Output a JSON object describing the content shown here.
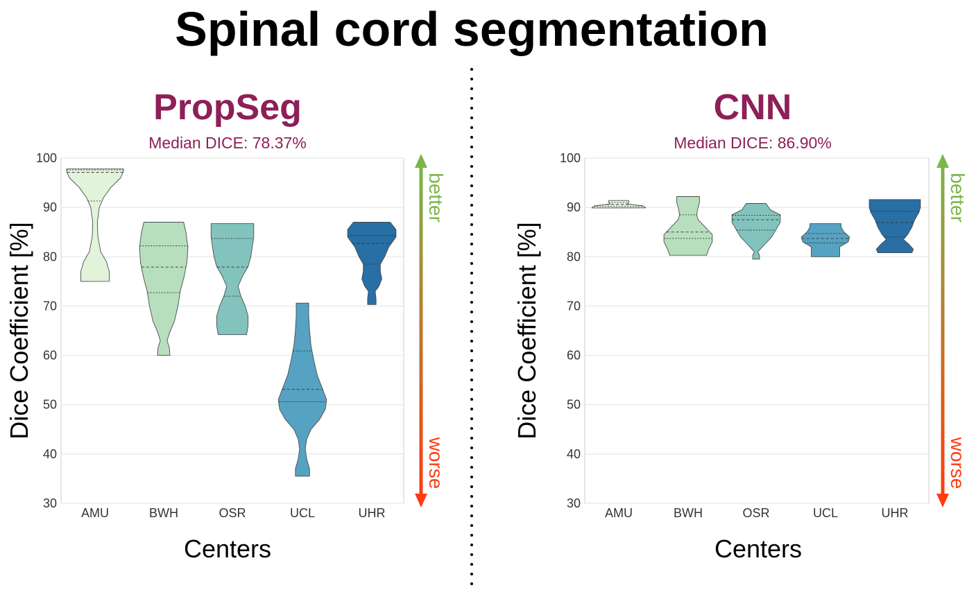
{
  "title": "Spinal cord segmentation",
  "colors": {
    "title_accent": "#8e1f58",
    "better": "#7ab648",
    "worse": "#ff3b10",
    "grid": "#e2e2e2",
    "outline": "#4a4a4a",
    "divider": "#000000"
  },
  "arrow": {
    "better": "better",
    "worse": "worse"
  },
  "chart_data": [
    {
      "type": "violin",
      "title": "PropSeg",
      "subtitle": "Median DICE: 78.37%",
      "xlabel": "Centers",
      "ylabel": "Dice Coefficient [%]",
      "ylim": [
        30,
        100
      ],
      "yticks": [
        30,
        40,
        50,
        60,
        70,
        80,
        90,
        100
      ],
      "categories": [
        "AMU",
        "BWH",
        "OSR",
        "UCL",
        "UHR"
      ],
      "colors": [
        "#e2f3dc",
        "#b7dfbd",
        "#83c3bd",
        "#56a2c2",
        "#276fa4"
      ],
      "violins": [
        {
          "center": "AMU",
          "min": 75.0,
          "max": 97.8,
          "q1": 91.3,
          "median": 97.1,
          "q3": 97.6,
          "profile": [
            [
              75.0,
              0.5
            ],
            [
              77,
              0.5
            ],
            [
              79,
              0.4
            ],
            [
              81,
              0.2
            ],
            [
              84,
              0.1
            ],
            [
              87,
              0.08
            ],
            [
              90,
              0.15
            ],
            [
              92,
              0.3
            ],
            [
              94,
              0.55
            ],
            [
              96,
              0.9
            ],
            [
              97.3,
              1.0
            ],
            [
              97.8,
              1.0
            ]
          ]
        },
        {
          "center": "BWH",
          "min": 60.0,
          "max": 87.0,
          "q1": 72.7,
          "median": 77.9,
          "q3": 82.2,
          "profile": [
            [
              60.0,
              0.22
            ],
            [
              61.5,
              0.2
            ],
            [
              63,
              0.12
            ],
            [
              64.5,
              0.2
            ],
            [
              67,
              0.38
            ],
            [
              70,
              0.5
            ],
            [
              73,
              0.58
            ],
            [
              76,
              0.72
            ],
            [
              79,
              0.82
            ],
            [
              82,
              0.85
            ],
            [
              85,
              0.78
            ],
            [
              87,
              0.7
            ]
          ]
        },
        {
          "center": "OSR",
          "min": 64.2,
          "max": 86.7,
          "q1": 72.0,
          "median": 77.9,
          "q3": 83.7,
          "profile": [
            [
              64.2,
              0.5
            ],
            [
              66,
              0.55
            ],
            [
              68,
              0.55
            ],
            [
              70,
              0.45
            ],
            [
              72,
              0.3
            ],
            [
              74,
              0.2
            ],
            [
              76,
              0.35
            ],
            [
              78,
              0.55
            ],
            [
              80,
              0.65
            ],
            [
              82,
              0.7
            ],
            [
              84,
              0.75
            ],
            [
              86.7,
              0.75
            ]
          ]
        },
        {
          "center": "UCL",
          "min": 35.5,
          "max": 70.6,
          "q1": 50.6,
          "median": 53.1,
          "q3": 60.9,
          "profile": [
            [
              35.5,
              0.25
            ],
            [
              37,
              0.25
            ],
            [
              39,
              0.15
            ],
            [
              41,
              0.1
            ],
            [
              43,
              0.15
            ],
            [
              45,
              0.3
            ],
            [
              47,
              0.6
            ],
            [
              49,
              0.8
            ],
            [
              51,
              0.85
            ],
            [
              53,
              0.72
            ],
            [
              56,
              0.52
            ],
            [
              59,
              0.4
            ],
            [
              62,
              0.3
            ],
            [
              65,
              0.25
            ],
            [
              68,
              0.22
            ],
            [
              70.6,
              0.22
            ]
          ]
        },
        {
          "center": "UHR",
          "min": 70.3,
          "max": 87.0,
          "q1": 78.5,
          "median": 82.7,
          "q3": 84.3,
          "profile": [
            [
              70.3,
              0.15
            ],
            [
              71.5,
              0.15
            ],
            [
              73,
              0.12
            ],
            [
              74,
              0.25
            ],
            [
              75.5,
              0.35
            ],
            [
              77,
              0.3
            ],
            [
              78.5,
              0.3
            ],
            [
              80,
              0.45
            ],
            [
              82,
              0.6
            ],
            [
              84,
              0.85
            ],
            [
              85.5,
              0.85
            ],
            [
              87,
              0.65
            ]
          ]
        }
      ]
    },
    {
      "type": "violin",
      "title": "CNN",
      "subtitle": "Median DICE: 86.90%",
      "xlabel": "Centers",
      "ylabel": "Dice Coefficient [%]",
      "ylim": [
        30,
        100
      ],
      "yticks": [
        30,
        40,
        50,
        60,
        70,
        80,
        90,
        100
      ],
      "categories": [
        "AMU",
        "BWH",
        "OSR",
        "UCL",
        "UHR"
      ],
      "colors": [
        "#e2f3dc",
        "#b7dfbd",
        "#83c3bd",
        "#56a2c2",
        "#276fa4"
      ],
      "violins": [
        {
          "center": "AMU",
          "min": 89.9,
          "max": 91.4,
          "q1": 90.2,
          "median": 90.6,
          "q3": 91.0,
          "profile": [
            [
              89.9,
              0.95
            ],
            [
              90.3,
              0.85
            ],
            [
              90.7,
              0.3
            ],
            [
              91.0,
              0.35
            ],
            [
              91.4,
              0.35
            ]
          ]
        },
        {
          "center": "BWH",
          "min": 80.3,
          "max": 92.2,
          "q1": 83.7,
          "median": 85.0,
          "q3": 88.5,
          "profile": [
            [
              80.3,
              0.65
            ],
            [
              81.5,
              0.72
            ],
            [
              83,
              0.85
            ],
            [
              84.5,
              0.85
            ],
            [
              86,
              0.6
            ],
            [
              87.5,
              0.35
            ],
            [
              88.5,
              0.3
            ],
            [
              90,
              0.35
            ],
            [
              91,
              0.4
            ],
            [
              92.2,
              0.4
            ]
          ]
        },
        {
          "center": "OSR",
          "min": 79.5,
          "max": 90.8,
          "q1": 85.4,
          "median": 87.5,
          "q3": 88.4,
          "profile": [
            [
              79.5,
              0.12
            ],
            [
              80.3,
              0.12
            ],
            [
              81,
              0.06
            ],
            [
              82.5,
              0.3
            ],
            [
              84,
              0.55
            ],
            [
              85.5,
              0.7
            ],
            [
              87,
              0.85
            ],
            [
              88.5,
              0.85
            ],
            [
              89.5,
              0.5
            ],
            [
              90.8,
              0.35
            ]
          ]
        },
        {
          "center": "UCL",
          "min": 80.0,
          "max": 86.7,
          "q1": 82.8,
          "median": 83.7,
          "q3": 84.7,
          "profile": [
            [
              80.0,
              0.5
            ],
            [
              81,
              0.5
            ],
            [
              82,
              0.5
            ],
            [
              83,
              0.8
            ],
            [
              84,
              0.85
            ],
            [
              85,
              0.65
            ],
            [
              86,
              0.55
            ],
            [
              86.7,
              0.55
            ]
          ]
        },
        {
          "center": "UHR",
          "min": 80.8,
          "max": 91.6,
          "q1": 84.0,
          "median": 86.9,
          "q3": 89.2,
          "profile": [
            [
              80.8,
              0.6
            ],
            [
              81.5,
              0.65
            ],
            [
              82.5,
              0.5
            ],
            [
              83.5,
              0.3
            ],
            [
              84.5,
              0.45
            ],
            [
              86,
              0.6
            ],
            [
              87.5,
              0.7
            ],
            [
              89,
              0.85
            ],
            [
              90,
              0.9
            ],
            [
              91.6,
              0.9
            ]
          ]
        }
      ]
    }
  ]
}
